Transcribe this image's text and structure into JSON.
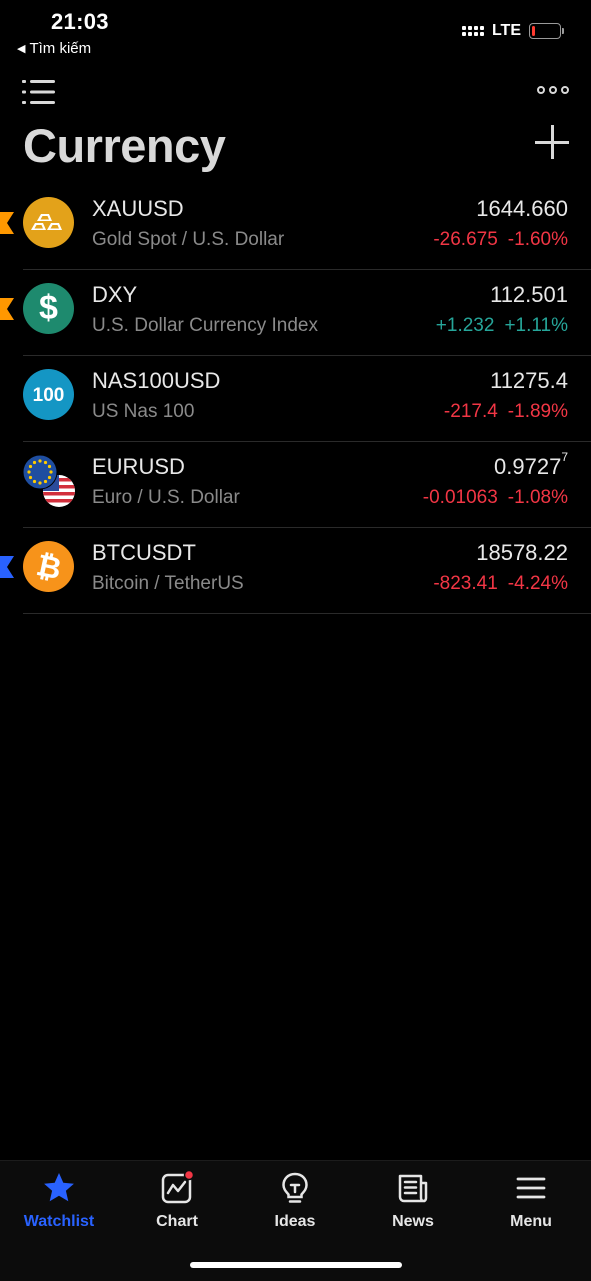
{
  "status_bar": {
    "time": "21:03",
    "back_label": "Tìm kiếm",
    "network": "LTE",
    "battery_level": 0.12,
    "battery_color": "#ff3b30"
  },
  "header": {
    "title": "Currency",
    "list_icon": "list-icon",
    "more_icon": "more-icon",
    "add_icon": "plus-icon"
  },
  "watchlist": [
    {
      "symbol": "XAUUSD",
      "description": "Gold Spot / U.S. Dollar",
      "price": "1644.660",
      "price_sup": "",
      "change": "-26.675",
      "change_pct": "-1.60%",
      "direction": "down",
      "logo_icon": "gold-bars-icon",
      "logo_color": "#e3a21a",
      "flag_color": "#ff9800"
    },
    {
      "symbol": "DXY",
      "description": "U.S. Dollar Currency Index",
      "price": "112.501",
      "price_sup": "",
      "change": "+1.232",
      "change_pct": "+1.11%",
      "direction": "up",
      "logo_icon": "dollar-icon",
      "logo_color": "#1e8a6e",
      "flag_color": "#ff9800"
    },
    {
      "symbol": "NAS100USD",
      "description": "US Nas 100",
      "price": "11275.4",
      "price_sup": "",
      "change": "-217.4",
      "change_pct": "-1.89%",
      "direction": "down",
      "logo_icon": "nas100-icon",
      "logo_text": "100",
      "logo_color": "#1496c4",
      "flag_color": ""
    },
    {
      "symbol": "EURUSD",
      "description": "Euro / U.S. Dollar",
      "price": "0.9727",
      "price_sup": "7",
      "change": "-0.01063",
      "change_pct": "-1.08%",
      "direction": "down",
      "logo_icon": "eu-us-flags-icon",
      "logo_color": "#1f4ea0",
      "flag_color": ""
    },
    {
      "symbol": "BTCUSDT",
      "description": "Bitcoin / TetherUS",
      "price": "18578.22",
      "price_sup": "",
      "change": "-823.41",
      "change_pct": "-4.24%",
      "direction": "down",
      "logo_icon": "bitcoin-icon",
      "logo_color": "#f7931a",
      "flag_color": "#2962ff"
    }
  ],
  "tabbar": {
    "tabs": [
      {
        "label": "Watchlist",
        "icon": "star-icon",
        "active": true
      },
      {
        "label": "Chart",
        "icon": "chart-icon",
        "active": false,
        "badge": true
      },
      {
        "label": "Ideas",
        "icon": "lightbulb-icon",
        "active": false
      },
      {
        "label": "News",
        "icon": "newspaper-icon",
        "active": false
      },
      {
        "label": "Menu",
        "icon": "hamburger-icon",
        "active": false
      }
    ],
    "active_color": "#2962ff"
  }
}
